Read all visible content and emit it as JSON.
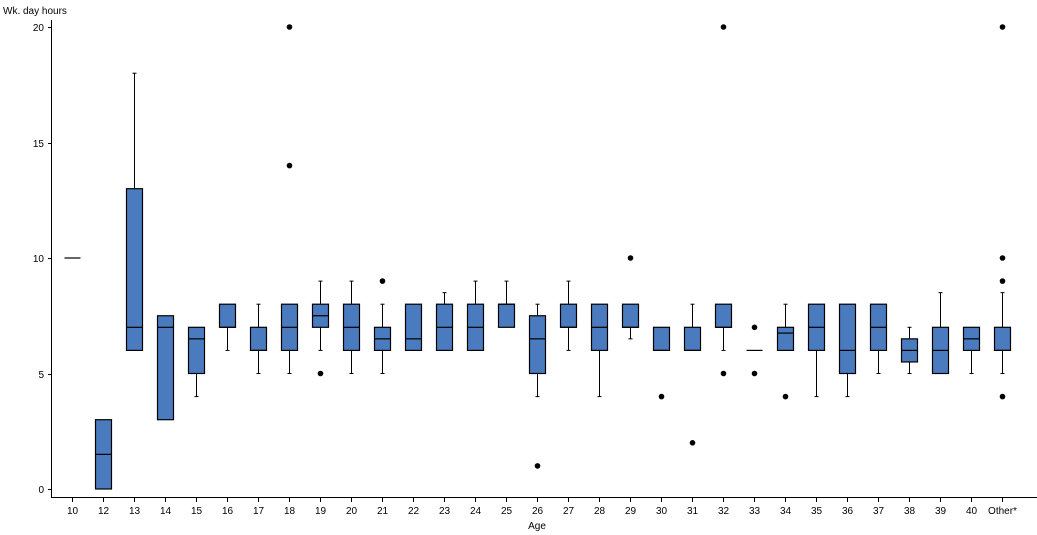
{
  "chart_data": {
    "type": "boxplot",
    "ylabel": "Wk. day hours",
    "xlabel": "Age",
    "ylim": [
      0,
      20
    ],
    "yticks": [
      0,
      5,
      10,
      15,
      20
    ],
    "grid": false,
    "box_color": "#4a7bbf",
    "categories": [
      "10",
      "12",
      "13",
      "14",
      "15",
      "16",
      "17",
      "18",
      "19",
      "20",
      "21",
      "22",
      "23",
      "24",
      "25",
      "26",
      "27",
      "28",
      "29",
      "30",
      "31",
      "32",
      "33",
      "34",
      "35",
      "36",
      "37",
      "38",
      "39",
      "40",
      "Other*"
    ],
    "boxes": [
      {
        "min": 10,
        "q1": 10,
        "median": 10,
        "q3": 10,
        "max": 10,
        "outliers": []
      },
      {
        "min": 0,
        "q1": 0,
        "median": 1.5,
        "q3": 3,
        "max": 3,
        "outliers": []
      },
      {
        "min": 6,
        "q1": 6,
        "median": 7,
        "q3": 13,
        "max": 18,
        "outliers": []
      },
      {
        "min": 3,
        "q1": 3,
        "median": 7,
        "q3": 7.5,
        "max": 7.5,
        "outliers": []
      },
      {
        "min": 4,
        "q1": 5,
        "median": 6.5,
        "q3": 7,
        "max": 7,
        "outliers": []
      },
      {
        "min": 6,
        "q1": 7,
        "median": 7,
        "q3": 8,
        "max": 8,
        "outliers": []
      },
      {
        "min": 5,
        "q1": 6,
        "median": 6,
        "q3": 7,
        "max": 8,
        "outliers": []
      },
      {
        "min": 5,
        "q1": 6,
        "median": 7,
        "q3": 8,
        "max": 8,
        "outliers": [
          14,
          20
        ]
      },
      {
        "min": 6,
        "q1": 7,
        "median": 7.5,
        "q3": 8,
        "max": 9,
        "outliers": [
          5
        ]
      },
      {
        "min": 5,
        "q1": 6,
        "median": 7,
        "q3": 8,
        "max": 9,
        "outliers": []
      },
      {
        "min": 5,
        "q1": 6,
        "median": 6.5,
        "q3": 7,
        "max": 8,
        "outliers": [
          9
        ]
      },
      {
        "min": 6,
        "q1": 6,
        "median": 6.5,
        "q3": 8,
        "max": 8,
        "outliers": []
      },
      {
        "min": 6,
        "q1": 6,
        "median": 7,
        "q3": 8,
        "max": 8.5,
        "outliers": []
      },
      {
        "min": 6,
        "q1": 6,
        "median": 7,
        "q3": 8,
        "max": 9,
        "outliers": []
      },
      {
        "min": 7,
        "q1": 7,
        "median": 8,
        "q3": 8,
        "max": 9,
        "outliers": []
      },
      {
        "min": 4,
        "q1": 5,
        "median": 6.5,
        "q3": 7.5,
        "max": 8,
        "outliers": [
          1
        ]
      },
      {
        "min": 6,
        "q1": 7,
        "median": 7,
        "q3": 8,
        "max": 9,
        "outliers": []
      },
      {
        "min": 4,
        "q1": 6,
        "median": 7,
        "q3": 8,
        "max": 8,
        "outliers": []
      },
      {
        "min": 6.5,
        "q1": 7,
        "median": 7,
        "q3": 8,
        "max": 8,
        "outliers": [
          10
        ]
      },
      {
        "min": 6,
        "q1": 6,
        "median": 6,
        "q3": 7,
        "max": 7,
        "outliers": [
          4
        ]
      },
      {
        "min": 6,
        "q1": 6,
        "median": 6,
        "q3": 7,
        "max": 8,
        "outliers": [
          2
        ]
      },
      {
        "min": 6,
        "q1": 7,
        "median": 7,
        "q3": 8,
        "max": 8,
        "outliers": [
          5,
          20
        ]
      },
      {
        "min": 6,
        "q1": 6,
        "median": 6,
        "q3": 6,
        "max": 6,
        "outliers": [
          5,
          7
        ]
      },
      {
        "min": 6,
        "q1": 6,
        "median": 6.75,
        "q3": 7,
        "max": 8,
        "outliers": [
          4
        ]
      },
      {
        "min": 4,
        "q1": 6,
        "median": 7,
        "q3": 8,
        "max": 8,
        "outliers": []
      },
      {
        "min": 4,
        "q1": 5,
        "median": 6,
        "q3": 8,
        "max": 8,
        "outliers": []
      },
      {
        "min": 5,
        "q1": 6,
        "median": 7,
        "q3": 8,
        "max": 8,
        "outliers": []
      },
      {
        "min": 5,
        "q1": 5.5,
        "median": 6,
        "q3": 6.5,
        "max": 7,
        "outliers": []
      },
      {
        "min": 5,
        "q1": 5,
        "median": 6,
        "q3": 7,
        "max": 8.5,
        "outliers": []
      },
      {
        "min": 5,
        "q1": 6,
        "median": 6.5,
        "q3": 7,
        "max": 7,
        "outliers": []
      },
      {
        "min": 5,
        "q1": 6,
        "median": 6,
        "q3": 7,
        "max": 8.5,
        "outliers": [
          4,
          9,
          10,
          20
        ]
      }
    ]
  }
}
